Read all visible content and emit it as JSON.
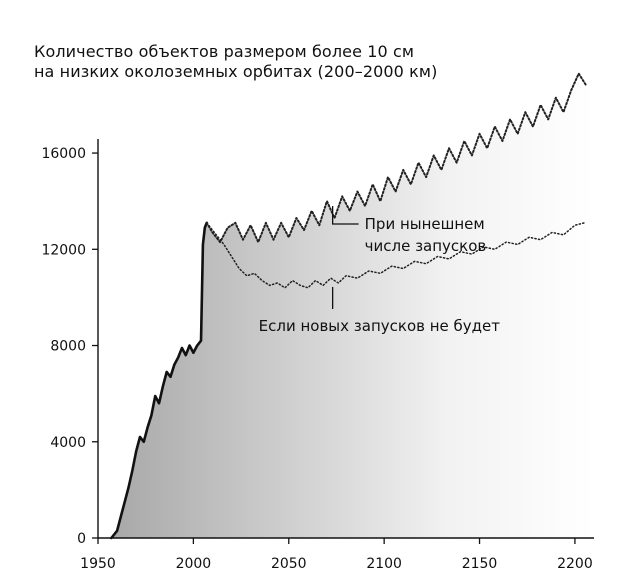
{
  "chart_data": {
    "type": "area",
    "title_lines": [
      "Количество объектов размером более 10 см",
      "на низких околоземных орбитах (200–2000 км)"
    ],
    "xlabel": "",
    "ylabel": "",
    "xlim": [
      1950,
      2210
    ],
    "ylim": [
      0,
      17000
    ],
    "x_ticks": [
      1950,
      2000,
      2050,
      2100,
      2150,
      2200
    ],
    "y_ticks": [
      0,
      4000,
      8000,
      12000,
      16000
    ],
    "grid": false,
    "colors": {
      "area_light": "#f2f2f2",
      "area_dark": "#a8a8a8",
      "line": "#111111",
      "dotted_line": "#222222"
    },
    "series": [
      {
        "style": "solid",
        "x": [
          1957,
          1960,
          1962,
          1964,
          1966,
          1968,
          1970,
          1972,
          1974,
          1976,
          1978,
          1980,
          1982,
          1984,
          1986,
          1988,
          1990,
          1992,
          1994,
          1996,
          1998,
          2000,
          2002,
          2004,
          2005,
          2006,
          2007
        ],
        "y": [
          0,
          300,
          900,
          1500,
          2100,
          2800,
          3600,
          4200,
          4000,
          4600,
          5100,
          5900,
          5600,
          6300,
          6900,
          6700,
          7200,
          7500,
          7900,
          7600,
          8000,
          7700,
          8000,
          8200,
          12200,
          12900,
          13100
        ]
      },
      {
        "name": "При нынешнем числе запусков",
        "style": "dotted",
        "x": [
          2007,
          2010,
          2014,
          2018,
          2022,
          2026,
          2030,
          2034,
          2038,
          2042,
          2046,
          2050,
          2054,
          2058,
          2062,
          2066,
          2070,
          2074,
          2078,
          2082,
          2086,
          2090,
          2094,
          2098,
          2102,
          2106,
          2110,
          2114,
          2118,
          2122,
          2126,
          2130,
          2134,
          2138,
          2142,
          2146,
          2150,
          2154,
          2158,
          2162,
          2166,
          2170,
          2174,
          2178,
          2182,
          2186,
          2190,
          2194,
          2198,
          2202,
          2206
        ],
        "y": [
          13100,
          12700,
          12300,
          12900,
          13100,
          12400,
          13000,
          12300,
          13100,
          12400,
          13100,
          12500,
          13300,
          12800,
          13600,
          13000,
          14000,
          13300,
          14200,
          13600,
          14400,
          13800,
          14700,
          14000,
          15000,
          14400,
          15300,
          14700,
          15600,
          15000,
          15900,
          15300,
          16200,
          15600,
          16500,
          15900,
          16800,
          16200,
          17100,
          16500,
          17400,
          16800,
          17700,
          17100,
          18000,
          17400,
          18300,
          17700,
          18600,
          19300,
          18800
        ]
      },
      {
        "name": "Если новых запусков не будет",
        "style": "dotted",
        "x": [
          2007,
          2012,
          2016,
          2020,
          2024,
          2028,
          2032,
          2036,
          2040,
          2044,
          2048,
          2052,
          2056,
          2060,
          2064,
          2068,
          2072,
          2076,
          2080,
          2086,
          2092,
          2098,
          2104,
          2110,
          2116,
          2122,
          2128,
          2134,
          2140,
          2146,
          2152,
          2158,
          2164,
          2170,
          2176,
          2182,
          2188,
          2194,
          2200,
          2205
        ],
        "y": [
          13100,
          12600,
          12200,
          11700,
          11200,
          10900,
          11000,
          10700,
          10500,
          10600,
          10400,
          10700,
          10500,
          10400,
          10700,
          10500,
          10800,
          10600,
          10900,
          10800,
          11100,
          11000,
          11300,
          11200,
          11500,
          11400,
          11700,
          11600,
          11900,
          11800,
          12100,
          12000,
          12300,
          12200,
          12500,
          12400,
          12700,
          12600,
          13000,
          13100
        ]
      }
    ],
    "annotations": [
      {
        "lines": [
          "При нынешнем",
          "числе запусков"
        ],
        "series": "При нынешнем числе запусков",
        "pointer_x": 2073,
        "pointer_y": 13800
      },
      {
        "lines": [
          "Если новых запусков не будет"
        ],
        "series": "Если новых запусков не будет",
        "pointer_x": 2073,
        "pointer_y": 10600
      }
    ]
  }
}
